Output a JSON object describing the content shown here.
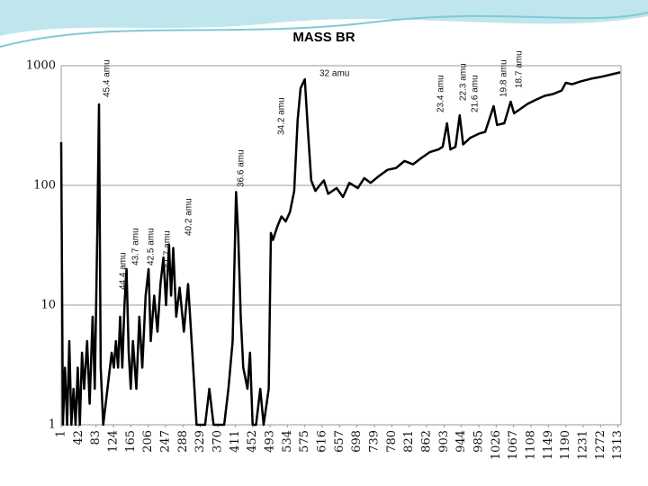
{
  "chart_data": {
    "type": "line",
    "title": "MASS BR",
    "x": [
      1,
      5,
      10,
      15,
      20,
      25,
      30,
      35,
      40,
      45,
      50,
      55,
      62,
      68,
      75,
      80,
      86,
      90,
      94,
      100,
      110,
      120,
      125,
      130,
      135,
      140,
      145,
      150,
      155,
      160,
      165,
      170,
      178,
      185,
      192,
      200,
      207,
      212,
      220,
      228,
      235,
      242,
      248,
      255,
      260,
      265,
      272,
      280,
      290,
      300,
      310,
      320,
      330,
      340,
      350,
      360,
      375,
      385,
      395,
      405,
      410,
      413,
      418,
      424,
      430,
      440,
      446,
      452,
      460,
      470,
      478,
      490,
      495,
      500,
      510,
      520,
      530,
      540,
      550,
      558,
      565,
      575,
      582,
      590,
      600,
      610,
      620,
      630,
      650,
      665,
      680,
      700,
      715,
      730,
      750,
      770,
      790,
      810,
      830,
      850,
      870,
      890,
      900,
      910,
      918,
      930,
      940,
      948,
      965,
      985,
      1000,
      1020,
      1028,
      1045,
      1060,
      1068,
      1085,
      1100,
      1120,
      1140,
      1160,
      1180,
      1190,
      1205,
      1225,
      1250,
      1275,
      1300,
      1318
    ],
    "series": [
      {
        "color": "#000000",
        "values": [
          230,
          1,
          3,
          1,
          5,
          1,
          2,
          1,
          3,
          1,
          4,
          2,
          5,
          1.5,
          8,
          2,
          40,
          475,
          3,
          1,
          2,
          4,
          3,
          5,
          3,
          8,
          3,
          10,
          20,
          4,
          2,
          5,
          2,
          8,
          3,
          12,
          20,
          5,
          12,
          6,
          15,
          25,
          10,
          32,
          12,
          30,
          8,
          14,
          6,
          15,
          4,
          1,
          1,
          1,
          2,
          1,
          1,
          1,
          2,
          5,
          30,
          88,
          40,
          8,
          3,
          2,
          4,
          1,
          1,
          2,
          1,
          2,
          40,
          35,
          45,
          55,
          50,
          60,
          90,
          350,
          650,
          770,
          300,
          110,
          90,
          100,
          110,
          85,
          95,
          80,
          105,
          95,
          115,
          105,
          120,
          135,
          140,
          160,
          150,
          170,
          190,
          200,
          210,
          330,
          200,
          210,
          385,
          220,
          250,
          270,
          280,
          460,
          320,
          330,
          500,
          400,
          440,
          480,
          520,
          560,
          580,
          620,
          720,
          700,
          740,
          780,
          810,
          850,
          880
        ]
      }
    ],
    "annotations": [
      "45.4 amu",
      "44.4 amu",
      "43.7 amu",
      "42.5 amu",
      "41.7 amu",
      "40.2 amu",
      "36.6 amu",
      "34.2 amu",
      "32 amu",
      "23.4 amu",
      "22.3 amu",
      "21.6 amu",
      "19.8 amu",
      "18.7 amu"
    ],
    "xlim": [
      1,
      1320
    ],
    "xticks": [
      1,
      42,
      83,
      124,
      165,
      206,
      247,
      288,
      329,
      370,
      411,
      452,
      493,
      534,
      575,
      616,
      657,
      698,
      739,
      780,
      821,
      862,
      903,
      944,
      985,
      1026,
      1067,
      1108,
      1149,
      1190,
      1231,
      1272,
      1313
    ],
    "ylim": [
      1,
      1000
    ],
    "yticks": [
      1,
      10,
      100,
      1000
    ],
    "log_y": true,
    "grid": true
  }
}
